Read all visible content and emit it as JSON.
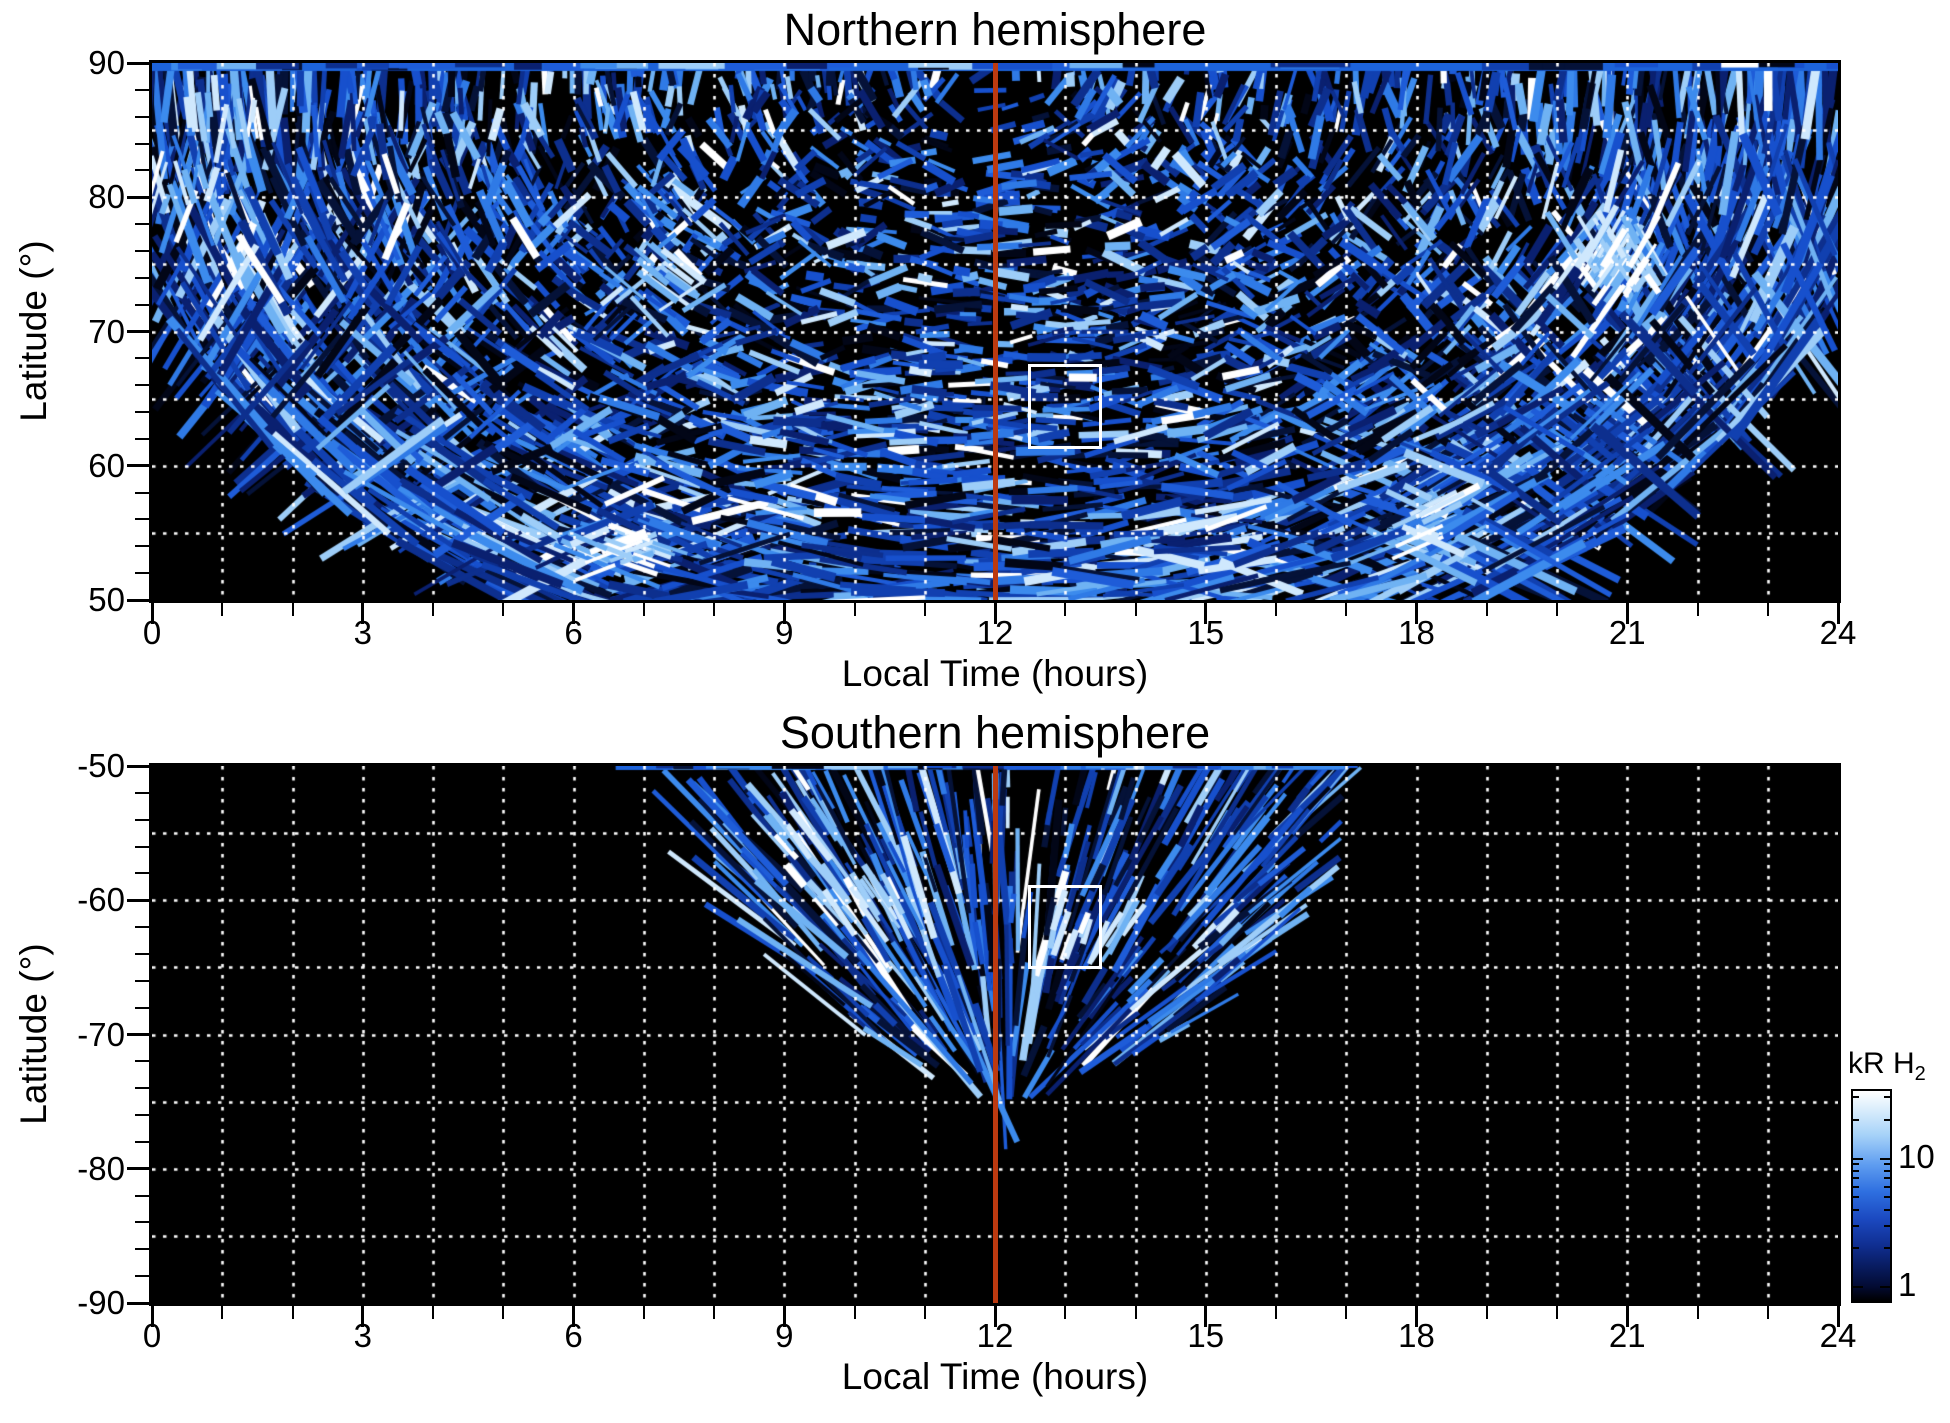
{
  "colors": {
    "background": "#ffffff",
    "plot_background": "#000000",
    "frame": "#000000",
    "grid": "#ffffff",
    "noon_line": "#bc3a10",
    "highlight_box": "#ffffff",
    "edge_stripe": "#1d63da"
  },
  "palette": {
    "dark": [
      "#020617",
      "#051238",
      "#0a2070"
    ],
    "mid": [
      "#0d2f8e",
      "#1140b0",
      "#1750cd"
    ],
    "light_mid": [
      "#1e5cd8",
      "#2f7ae6",
      "#3c8bed"
    ],
    "light": [
      "#6fb2f3",
      "#9dcdf8"
    ],
    "bright": [
      "#cfe8fd",
      "#ffffff"
    ]
  },
  "chart_data": [
    {
      "type": "heatmap",
      "panel": "northern",
      "title": "Northern hemisphere",
      "xlabel": "Local Time (hours)",
      "ylabel": "Latitude (°)",
      "xlim": [
        0,
        24
      ],
      "ylim": [
        90,
        50
      ],
      "xticks": [
        0,
        3,
        6,
        9,
        12,
        15,
        18,
        21,
        24
      ],
      "xminor_step": 1,
      "yticks": [
        90,
        80,
        70,
        60,
        50
      ],
      "yminor_step": 2,
      "grid": {
        "x_step_hours": 1,
        "y_step_deg": 5,
        "style": "dotted"
      },
      "noon_line_x": 12,
      "highlight_box": {
        "lt": [
          12.5,
          13.5
        ],
        "lat": [
          61.4,
          67.4
        ]
      },
      "coverage": {
        "shape": "half-ellipse",
        "center_lt": 12,
        "center_lat": 90,
        "semi_lt": 12.9,
        "semi_lat": 47.5,
        "note": "emission data fills lat 72.6-90 at LT 0/24, widening to lat 50-90 between LT ~5 and ~19; corners below the arc are empty"
      },
      "edge_stripe": {
        "lat": 90,
        "lt": [
          0,
          24
        ],
        "px": 8
      },
      "bright_spots": [
        {
          "lt": 20.8,
          "lat": 75.5,
          "n": 50
        },
        {
          "lt": 6.7,
          "lat": 53.5,
          "n": 28
        },
        {
          "lt": 18.3,
          "lat": 56.0,
          "n": 20
        },
        {
          "lt": 7.2,
          "lat": 74.0,
          "n": 16
        },
        {
          "lt": 1.1,
          "lat": 86.5,
          "n": 14
        },
        {
          "lt": 0.3,
          "lat": 80.0,
          "n": 10
        }
      ],
      "dark_patches": [
        {
          "lt": [
            11.2,
            12.8
          ],
          "lat": [
            82.5,
            89.3
          ],
          "skip": 0.65
        }
      ],
      "render": {
        "mode": "tangential",
        "seed": 7,
        "attempts": 4300,
        "len_base": 12,
        "len_edge": 115,
        "len_rand": 34,
        "w_base": 3.5,
        "w_rand": 5.5,
        "jitter_deg": 30,
        "mirror_prob": 0.35
      }
    },
    {
      "type": "heatmap",
      "panel": "southern",
      "title": "Southern hemisphere",
      "xlabel": "Local Time (hours)",
      "ylabel": "Latitude (°)",
      "xlim": [
        0,
        24
      ],
      "ylim": [
        -50,
        -90
      ],
      "xticks": [
        0,
        3,
        6,
        9,
        12,
        15,
        18,
        21,
        24
      ],
      "xminor_step": 1,
      "yticks": [
        -50,
        -60,
        -70,
        -80,
        -90
      ],
      "yminor_step": 2,
      "grid": {
        "x_step_hours": 1,
        "y_step_deg": 5,
        "style": "dotted"
      },
      "noon_line_x": 12,
      "highlight_box": {
        "lt": [
          12.5,
          13.5
        ],
        "lat": [
          -65,
          -59
        ]
      },
      "coverage": {
        "shape": "half-ellipse",
        "center_lt": 12.35,
        "center_lat": -50,
        "semi_lt": 4.55,
        "semi_lat": 23,
        "note": "fan of emission streaks spanning LT ~7.8-16.9 at -50, converging to a tip near lat -73 around noon; rest of panel empty"
      },
      "focus": {
        "lt": 12.2,
        "lat": -77
      },
      "edge_stripe": {
        "lat": -50,
        "lt": [
          6.6,
          16.9
        ],
        "px": 4
      },
      "bright_spots": [
        {
          "lt": 10.2,
          "lat": -60.0,
          "n": 16
        },
        {
          "lt": 13.3,
          "lat": -62.5,
          "n": 14
        },
        {
          "lt": 9.0,
          "lat": -55.0,
          "n": 10
        }
      ],
      "dark_patches": [
        {
          "lt": [
            12.05,
            13.2
          ],
          "lat": [
            -57.5,
            -50.3
          ],
          "skip": 0.7
        }
      ],
      "render": {
        "mode": "radial",
        "seed": 11,
        "attempts": 2500,
        "len_base": 28,
        "len_pow": 1.6,
        "len_rand": 150,
        "w_base": 3,
        "w_rand": 4.5,
        "jitter_deg": 6
      }
    }
  ],
  "colorbar": {
    "label_main": "kR H",
    "label_sub": "2",
    "scale": "log",
    "range": [
      0.78,
      33.5
    ],
    "ticks": [
      10,
      1
    ],
    "minor_ticks": [
      2,
      3,
      4,
      5,
      6,
      7,
      8,
      9,
      20,
      30
    ],
    "gradient": [
      "#ffffff 0%",
      "#d9edfc 9%",
      "#a6d2f8 21%",
      "#5f9df0 35%",
      "#2e6fe0 48%",
      "#1b49c0 61%",
      "#102f93 73%",
      "#081b5e 84%",
      "#030b33 93%",
      "#000000 100%"
    ]
  }
}
